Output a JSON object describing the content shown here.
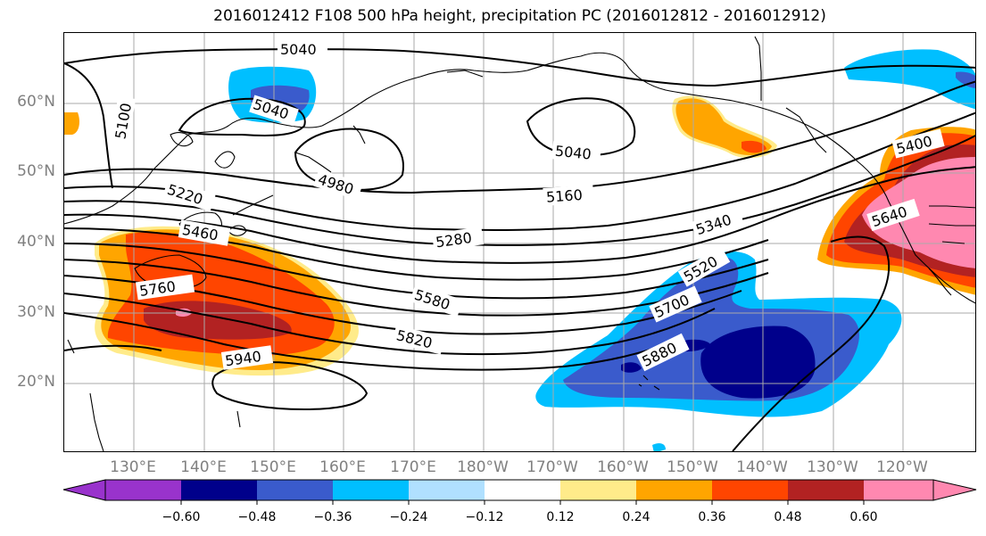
{
  "title": "2016012412 F108 500 hPa height, precipitation PC (2016012812 - 2016012912)",
  "lat_labels": [
    "60°N",
    "50°N",
    "40°N",
    "30°N",
    "20°N"
  ],
  "lon_labels": [
    "130°E",
    "140°E",
    "150°E",
    "160°E",
    "170°E",
    "180°W",
    "170°W",
    "160°W",
    "150°W",
    "140°W",
    "130°W",
    "120°W"
  ],
  "contour_labels": [
    "5040",
    "5040",
    "5100",
    "4980",
    "5040",
    "5160",
    "5220",
    "5280",
    "5340",
    "5460",
    "5400",
    "5640",
    "5520",
    "5760",
    "5580",
    "5700",
    "5820",
    "5880",
    "5940"
  ],
  "colorbar": {
    "tick_labels": [
      "−0.60",
      "−0.48",
      "−0.36",
      "−0.24",
      "−0.12",
      "0.12",
      "0.24",
      "0.36",
      "0.48",
      "0.60"
    ],
    "colors": [
      "#9933cc",
      "#00008b",
      "#3a5bcc",
      "#00bfff",
      "#b0e0ff",
      "#ffffff",
      "#ffeb8a",
      "#ffa500",
      "#ff4500",
      "#b22222",
      "#ff88b0"
    ]
  },
  "colors": {
    "purple": "#9933cc",
    "navy": "#00008b",
    "royal_blue": "#3a5bcc",
    "sky_blue": "#00bfff",
    "pale_blue": "#b0e0ff",
    "light_yellow": "#ffeb8a",
    "orange": "#ffa500",
    "red_orange": "#ff4500",
    "dark_red": "#b22222",
    "pink": "#ff88b0"
  }
}
